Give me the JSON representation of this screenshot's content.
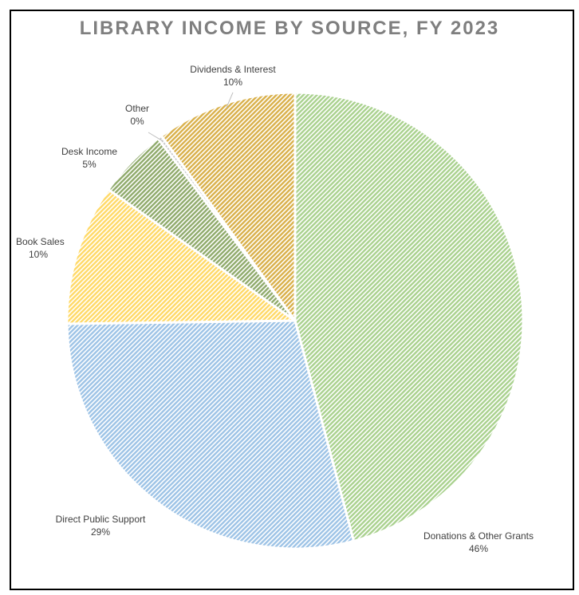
{
  "chart_data": {
    "type": "pie",
    "title": "LIBRARY INCOME BY SOURCE, FY 2023",
    "slices": [
      {
        "name": "Donations & Other Grants",
        "value": 46,
        "value_label": "46%",
        "color": "#a9d18e"
      },
      {
        "name": "Direct Public Support",
        "value": 29,
        "value_label": "29%",
        "color": "#9dc3e6"
      },
      {
        "name": "Book Sales",
        "value": 10,
        "value_label": "10%",
        "color": "#ffd966"
      },
      {
        "name": "Desk Income",
        "value": 5,
        "value_label": "5%",
        "color": "#8faa6b"
      },
      {
        "name": "Other",
        "value": 0.3,
        "value_label": "0%",
        "color": "#c9c9c9"
      },
      {
        "name": "Dividends & Interest",
        "value": 10,
        "value_label": "10%",
        "color": "#d9b04a"
      }
    ],
    "start_angle": "12 o'clock",
    "direction": "clockwise",
    "fill_pattern": "diagonal-hatch",
    "slice_border_color": "#ffffff",
    "legend": "none"
  }
}
